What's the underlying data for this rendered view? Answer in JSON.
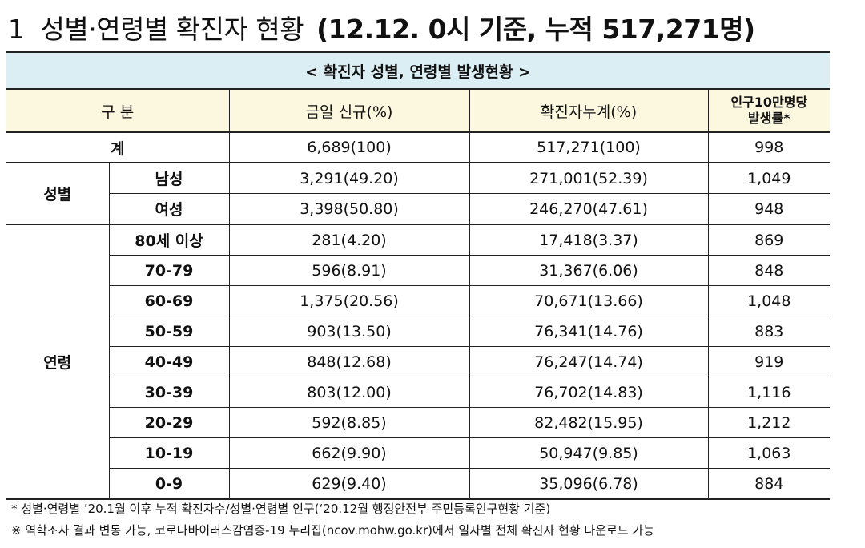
{
  "header": {
    "section_number": "1",
    "title": "성별·연령별 확진자 현황",
    "basis": "(12.12. 0시 기준, 누적 517,271명)"
  },
  "table": {
    "caption": "< 확진자 성별, 연령별 발생현황 >",
    "columns": {
      "category": "구 분",
      "today_new": "금일 신규(%)",
      "cumulative": "확진자누계(%)",
      "rate_line1": "인구10만명당",
      "rate_line2": "발생률*"
    },
    "total": {
      "label": "계",
      "today_new": "6,689(100)",
      "cumulative": "517,271(100)",
      "rate": "998"
    },
    "gender": {
      "label": "성별",
      "rows": [
        {
          "label": "남성",
          "today_new": "3,291(49.20)",
          "cumulative": "271,001(52.39)",
          "rate": "1,049"
        },
        {
          "label": "여성",
          "today_new": "3,398(50.80)",
          "cumulative": "246,270(47.61)",
          "rate": "948"
        }
      ]
    },
    "age": {
      "label": "연령",
      "rows": [
        {
          "label": "80세 이상",
          "today_new": "281(4.20)",
          "cumulative": "17,418(3.37)",
          "rate": "869"
        },
        {
          "label": "70-79",
          "today_new": "596(8.91)",
          "cumulative": "31,367(6.06)",
          "rate": "848"
        },
        {
          "label": "60-69",
          "today_new": "1,375(20.56)",
          "cumulative": "70,671(13.66)",
          "rate": "1,048"
        },
        {
          "label": "50-59",
          "today_new": "903(13.50)",
          "cumulative": "76,341(14.76)",
          "rate": "883"
        },
        {
          "label": "40-49",
          "today_new": "848(12.68)",
          "cumulative": "76,247(14.74)",
          "rate": "919"
        },
        {
          "label": "30-39",
          "today_new": "803(12.00)",
          "cumulative": "76,702(14.83)",
          "rate": "1,116"
        },
        {
          "label": "20-29",
          "today_new": "592(8.85)",
          "cumulative": "82,482(15.95)",
          "rate": "1,212"
        },
        {
          "label": "10-19",
          "today_new": "662(9.90)",
          "cumulative": "50,947(9.85)",
          "rate": "1,063"
        },
        {
          "label": "0-9",
          "today_new": "629(9.40)",
          "cumulative": "35,096(6.78)",
          "rate": "884"
        }
      ]
    }
  },
  "notes": {
    "note1": "* 성별·연령별 ’20.1월 이후 누적 확진자수/성별·연령별 인구(‘20.12월 행정안전부 주민등록인구현황 기준)",
    "note2": "※ 역학조사 결과 변동 가능, 코로나바이러스감염증-19 누리집(ncov.mohw.go.kr)에서 일자별 전체 확진자 현황 다운로드 가능"
  }
}
